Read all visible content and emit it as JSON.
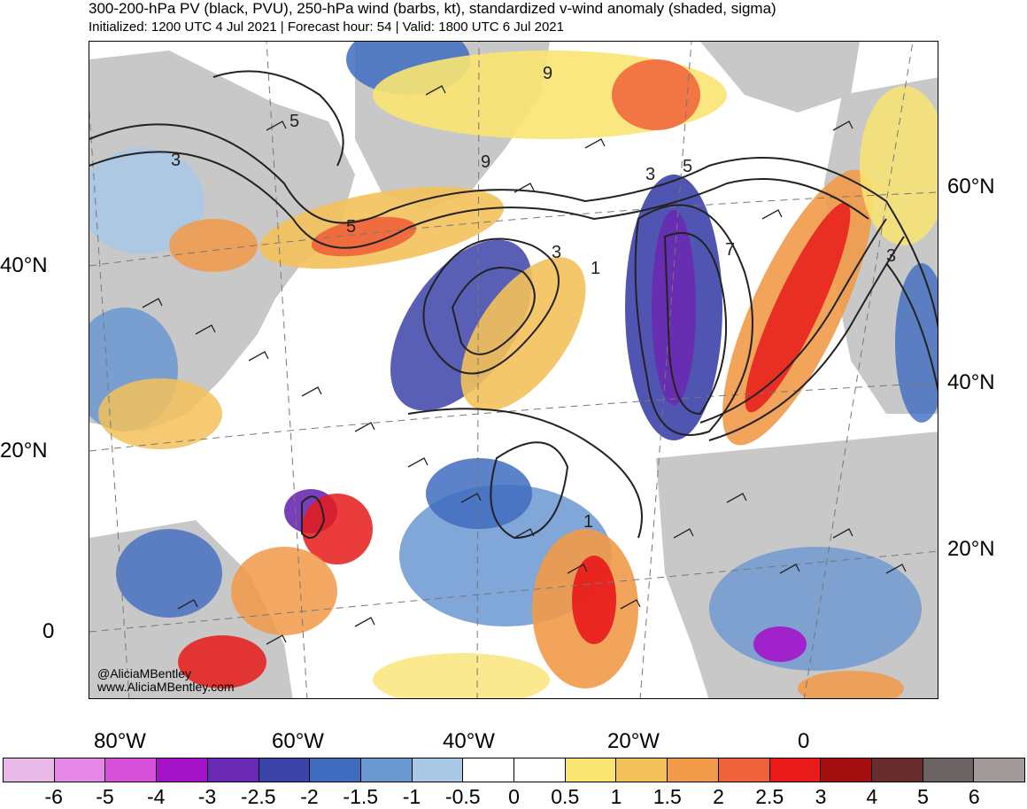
{
  "header": {
    "title": "300-200-hPa PV (black, PVU), 250-hPa wind (barbs, kt), standardized v-wind anomaly (shaded, sigma)",
    "subtitle": "Initialized: 1200 UTC 4 Jul 2021 | Forecast hour: 54 | Valid: 1800 UTC 6 Jul 2021"
  },
  "map": {
    "left_lat_labels": [
      "40°N",
      "20°N",
      "0"
    ],
    "right_lat_labels": [
      "60°N",
      "40°N",
      "20°N"
    ],
    "lon_labels": [
      "80°W",
      "60°W",
      "40°W",
      "20°W",
      "0"
    ],
    "contour_labels": [
      "3",
      "5",
      "9",
      "9",
      "5",
      "3",
      "1",
      "3",
      "5",
      "7",
      "3",
      "1"
    ],
    "credit_handle": "@AliciaMBentley",
    "credit_site": "www.AliciaMBentley.com"
  },
  "colorbar": {
    "labels": [
      "-6",
      "-5",
      "-4",
      "-3",
      "-2.5",
      "-2",
      "-1.5",
      "-1",
      "-0.5",
      "0",
      "0.5",
      "1",
      "1.5",
      "2",
      "2.5",
      "3",
      "4",
      "5",
      "6"
    ],
    "colors": [
      "#e8b8e8",
      "#e588e5",
      "#d64fd9",
      "#a513c9",
      "#6a2ab3",
      "#3c43a8",
      "#3f6cbf",
      "#6b97d1",
      "#a8c8e6",
      "#ffffff",
      "#ffffff",
      "#f9e472",
      "#f3c15a",
      "#f19a49",
      "#ee623a",
      "#e81a1a",
      "#a30f0f",
      "#6a2d2d",
      "#6b6363",
      "#a39a9a"
    ]
  }
}
